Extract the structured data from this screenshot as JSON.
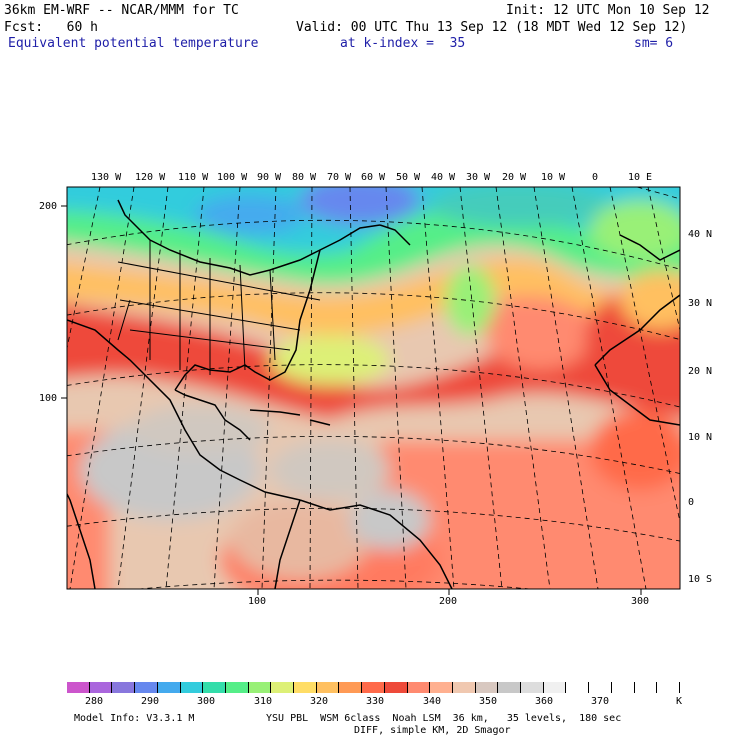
{
  "header": {
    "model": "36km EM-WRF -- NCAR/MMM for TC",
    "init": "Init: 12 UTC Mon 10 Sep 12",
    "fcst": "Fcst:   60 h",
    "valid": "Valid: 00 UTC Thu 13 Sep 12 (18 MDT Wed 12 Sep 12)",
    "field": "Equivalent potential temperature",
    "level": "at k-index =  35",
    "smooth": "sm= 6"
  },
  "map": {
    "top_lon_labels": [
      "130 W",
      "120 W",
      "110 W",
      "100 W",
      "90 W",
      "80 W",
      "70 W",
      "60 W",
      "50 W",
      "40 W",
      "30 W",
      "20 W",
      "10 W",
      "0",
      "10 E"
    ],
    "right_lat_labels": [
      "40 N",
      "30 N",
      "20 N",
      "10 N",
      "0",
      "10 S"
    ],
    "left_grid_labels": [
      "200",
      "100"
    ],
    "bottom_grid_labels": [
      "100",
      "200",
      "300"
    ]
  },
  "colorbar": {
    "colors": [
      "#cc55cc",
      "#aa66dd",
      "#8877dd",
      "#6688ee",
      "#44aaee",
      "#33ccdd",
      "#33ddaa",
      "#55ee88",
      "#99f077",
      "#ddf077",
      "#ffdd66",
      "#ffc060",
      "#ff9a55",
      "#ff6a4a",
      "#ee4a3a",
      "#ff8a70",
      "#ffb090",
      "#f0c8b0",
      "#d8c8c0",
      "#c8c8c8",
      "#dddddd",
      "#f0f0f0",
      "#ffffff",
      "#ffffff",
      "#ffffff",
      "#ffffff",
      "#ffffff"
    ],
    "labels": [
      "280",
      "290",
      "300",
      "310",
      "320",
      "330",
      "340",
      "350",
      "360",
      "370"
    ],
    "unit": "K"
  },
  "footer": {
    "model_info": "Model Info: V3.3.1 M",
    "physics": "YSU PBL  WSM 6class  Noah LSM  36 km,   35 levels,  180 sec",
    "diff": "DIFF, simple KM, 2D Smagor"
  }
}
